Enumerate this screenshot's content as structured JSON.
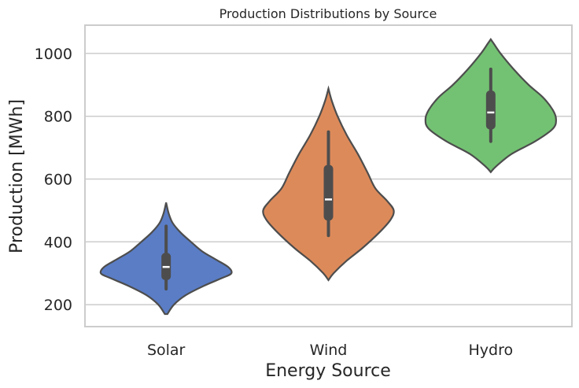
{
  "chart_data": {
    "type": "violin",
    "title": "Production Distributions by Source",
    "xlabel": "Energy Source",
    "ylabel": "Production [MWh]",
    "categories": [
      "Solar",
      "Wind",
      "Hydro"
    ],
    "ylim": [
      130,
      1090
    ],
    "yticks": [
      200,
      400,
      600,
      800,
      1000
    ],
    "grid": true,
    "colors": {
      "Solar": "#5a7dc6",
      "Wind": "#dd8a5a",
      "Hydro": "#73c273",
      "outline": "#4d4d4d",
      "box": "#4d4d4d",
      "median": "#ffffff",
      "grid": "#cccccc",
      "frame": "#cccccc"
    },
    "series": [
      {
        "category": "Solar",
        "density": [
          [
            170,
            0.02
          ],
          [
            200,
            0.12
          ],
          [
            230,
            0.3
          ],
          [
            260,
            0.58
          ],
          [
            285,
            0.86
          ],
          [
            300,
            1.0
          ],
          [
            320,
            0.95
          ],
          [
            345,
            0.75
          ],
          [
            370,
            0.55
          ],
          [
            400,
            0.38
          ],
          [
            430,
            0.22
          ],
          [
            460,
            0.1
          ],
          [
            490,
            0.04
          ],
          [
            525,
            0.0
          ]
        ],
        "whisker_low": 250,
        "q1": 278,
        "median": 320,
        "q3": 365,
        "whisker_high": 450
      },
      {
        "category": "Wind",
        "density": [
          [
            278,
            0.0
          ],
          [
            300,
            0.08
          ],
          [
            340,
            0.28
          ],
          [
            380,
            0.52
          ],
          [
            430,
            0.78
          ],
          [
            470,
            0.95
          ],
          [
            500,
            1.0
          ],
          [
            530,
            0.9
          ],
          [
            570,
            0.72
          ],
          [
            620,
            0.6
          ],
          [
            680,
            0.45
          ],
          [
            740,
            0.28
          ],
          [
            800,
            0.14
          ],
          [
            850,
            0.05
          ],
          [
            888,
            0.0
          ]
        ],
        "whisker_low": 420,
        "q1": 468,
        "median": 535,
        "q3": 645,
        "whisker_high": 750
      },
      {
        "category": "Hydro",
        "density": [
          [
            622,
            0.0
          ],
          [
            640,
            0.08
          ],
          [
            680,
            0.32
          ],
          [
            720,
            0.68
          ],
          [
            760,
            0.95
          ],
          [
            790,
            1.0
          ],
          [
            820,
            0.95
          ],
          [
            860,
            0.8
          ],
          [
            900,
            0.58
          ],
          [
            950,
            0.35
          ],
          [
            1000,
            0.15
          ],
          [
            1030,
            0.05
          ],
          [
            1045,
            0.0
          ]
        ],
        "whisker_low": 720,
        "q1": 758,
        "median": 812,
        "q3": 882,
        "whisker_high": 950
      }
    ]
  }
}
